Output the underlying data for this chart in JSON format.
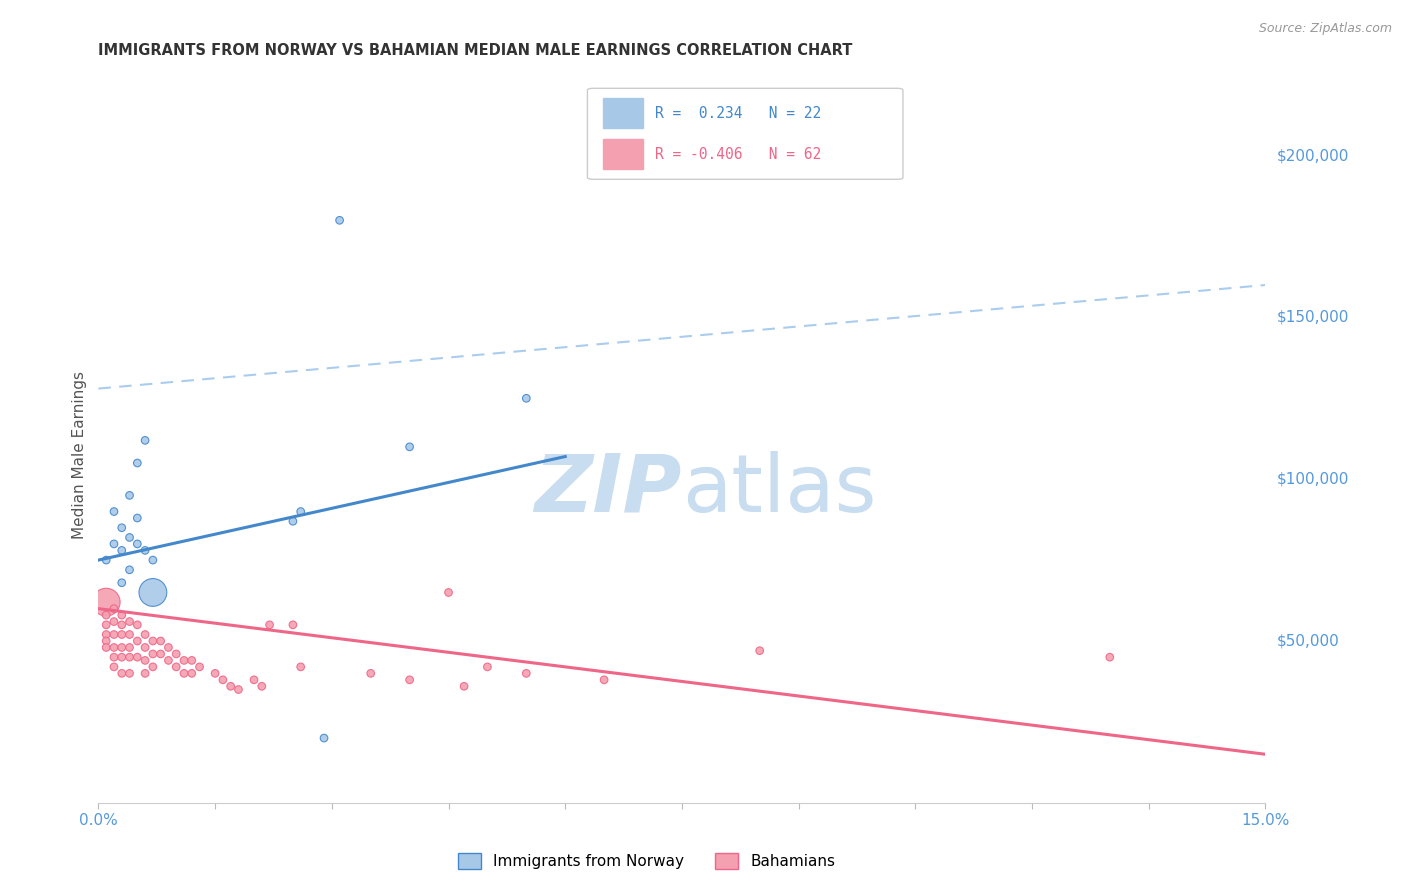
{
  "title": "IMMIGRANTS FROM NORWAY VS BAHAMIAN MEDIAN MALE EARNINGS CORRELATION CHART",
  "source": "Source: ZipAtlas.com",
  "ylabel": "Median Male Earnings",
  "xlim": [
    0.0,
    0.15
  ],
  "ylim": [
    0,
    215000
  ],
  "yticks": [
    50000,
    100000,
    150000,
    200000
  ],
  "ytick_labels": [
    "$50,000",
    "$100,000",
    "$150,000",
    "$200,000"
  ],
  "xticks": [
    0.0,
    0.015,
    0.03,
    0.045,
    0.06,
    0.075,
    0.09,
    0.105,
    0.12,
    0.135,
    0.15
  ],
  "xtick_labels": [
    "0.0%",
    "",
    "",
    "",
    "",
    "",
    "",
    "",
    "",
    "",
    "15.0%"
  ],
  "norway_R": 0.234,
  "norway_N": 22,
  "bahamas_R": -0.406,
  "bahamas_N": 62,
  "norway_color": "#a8c8e8",
  "bahamas_color": "#f4a0b0",
  "norway_line_color": "#4488cc",
  "bahamas_line_color": "#ee6688",
  "dashed_line_color": "#aaccee",
  "watermark_color": "#c8ddf0",
  "norway_x": [
    0.001,
    0.002,
    0.002,
    0.003,
    0.003,
    0.004,
    0.004,
    0.005,
    0.005,
    0.006,
    0.007,
    0.007,
    0.025,
    0.026,
    0.029,
    0.031,
    0.04,
    0.055,
    0.003,
    0.004,
    0.005,
    0.006
  ],
  "norway_y": [
    75000,
    80000,
    90000,
    78000,
    85000,
    72000,
    95000,
    88000,
    80000,
    112000,
    75000,
    65000,
    87000,
    90000,
    20000,
    180000,
    110000,
    125000,
    68000,
    82000,
    105000,
    78000
  ],
  "norway_size": [
    30,
    30,
    30,
    30,
    30,
    30,
    30,
    30,
    30,
    30,
    30,
    400,
    30,
    30,
    30,
    30,
    30,
    30,
    30,
    30,
    30,
    30
  ],
  "bahamas_x": [
    0.001,
    0.001,
    0.001,
    0.001,
    0.001,
    0.001,
    0.002,
    0.002,
    0.002,
    0.002,
    0.002,
    0.002,
    0.003,
    0.003,
    0.003,
    0.003,
    0.003,
    0.003,
    0.004,
    0.004,
    0.004,
    0.004,
    0.004,
    0.005,
    0.005,
    0.005,
    0.006,
    0.006,
    0.006,
    0.006,
    0.007,
    0.007,
    0.007,
    0.008,
    0.008,
    0.009,
    0.009,
    0.01,
    0.01,
    0.011,
    0.011,
    0.012,
    0.012,
    0.013,
    0.015,
    0.016,
    0.017,
    0.018,
    0.02,
    0.021,
    0.022,
    0.025,
    0.026,
    0.035,
    0.04,
    0.045,
    0.047,
    0.05,
    0.055,
    0.065,
    0.085,
    0.13
  ],
  "bahamas_y": [
    62000,
    58000,
    55000,
    52000,
    50000,
    48000,
    60000,
    56000,
    52000,
    48000,
    45000,
    42000,
    58000,
    55000,
    52000,
    48000,
    45000,
    40000,
    56000,
    52000,
    48000,
    45000,
    40000,
    55000,
    50000,
    45000,
    52000,
    48000,
    44000,
    40000,
    50000,
    46000,
    42000,
    50000,
    46000,
    48000,
    44000,
    46000,
    42000,
    44000,
    40000,
    44000,
    40000,
    42000,
    40000,
    38000,
    36000,
    35000,
    38000,
    36000,
    55000,
    55000,
    42000,
    40000,
    38000,
    65000,
    36000,
    42000,
    40000,
    38000,
    47000,
    45000
  ],
  "bahamas_size": [
    400,
    30,
    30,
    30,
    30,
    30,
    30,
    30,
    30,
    30,
    30,
    30,
    30,
    30,
    30,
    30,
    30,
    30,
    30,
    30,
    30,
    30,
    30,
    30,
    30,
    30,
    30,
    30,
    30,
    30,
    30,
    30,
    30,
    30,
    30,
    30,
    30,
    30,
    30,
    30,
    30,
    30,
    30,
    30,
    30,
    30,
    30,
    30,
    30,
    30,
    30,
    30,
    30,
    30,
    30,
    30,
    30,
    30,
    30,
    30,
    30,
    30
  ],
  "norway_line_x0": 0.0,
  "norway_line_x1": 0.06,
  "norway_line_y0": 75000,
  "norway_line_y1": 107000,
  "dashed_line_x0": 0.0,
  "dashed_line_x1": 0.15,
  "dashed_line_y0": 128000,
  "dashed_line_y1": 160000,
  "bahamas_line_x0": 0.0,
  "bahamas_line_x1": 0.15,
  "bahamas_line_y0": 60000,
  "bahamas_line_y1": 15000
}
